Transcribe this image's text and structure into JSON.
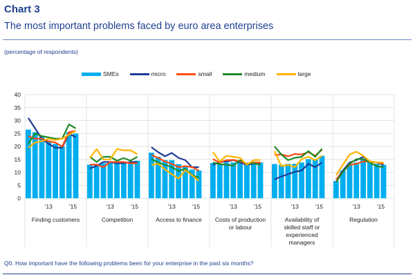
{
  "header": {
    "title": "Chart 3",
    "subtitle": "The most important problems faced by euro area enterprises",
    "unit_note": "(percentage of respondents)"
  },
  "footer": {
    "question": "Q0. How important have the following problems been for your enterprise in the past six months?"
  },
  "chart_data": {
    "type": "bar",
    "title": "The most important problems faced by euro area enterprises",
    "ylabel": "percentage of respondents",
    "ylim": [
      0,
      40
    ],
    "yticks": [
      "0",
      "5",
      "10",
      "15",
      "20",
      "25",
      "30",
      "35",
      "40"
    ],
    "xtick_labels": [
      {
        "index": 3,
        "label": "'13"
      },
      {
        "index": 6.6,
        "label": "'15"
      }
    ],
    "grid": true,
    "legend_position": "top-center",
    "legend": [
      {
        "name": "SMEs",
        "kind": "bar",
        "color": "#00aeef"
      },
      {
        "name": "micro",
        "kind": "line",
        "color": "#1e3c96"
      },
      {
        "name": "small",
        "kind": "line",
        "color": "#ff4b12"
      },
      {
        "name": "medium",
        "kind": "line",
        "color": "#1f8a27"
      },
      {
        "name": "large",
        "kind": "line",
        "color": "#ffb400"
      }
    ],
    "panels": [
      {
        "label": "Finding customers",
        "SMEs": [
          26.5,
          25.5,
          24,
          22,
          21,
          20,
          25.5,
          25
        ],
        "micro": [
          31,
          27,
          23,
          21,
          19.5,
          19.5,
          25,
          23.5
        ],
        "small": [
          24,
          23,
          23,
          22,
          21.5,
          20,
          25.5,
          26
        ],
        "medium": [
          21,
          25,
          24,
          23.5,
          23,
          23,
          28.5,
          27
        ],
        "large": [
          19.5,
          21.5,
          22,
          23,
          22.5,
          23,
          24.5,
          26
        ]
      },
      {
        "label": "Competition",
        "SMEs": [
          13,
          13,
          13.5,
          14,
          13.5,
          14,
          13.5,
          14.5
        ],
        "micro": [
          11.5,
          12.5,
          14,
          14,
          13.5,
          13.5,
          14,
          14
        ],
        "small": [
          13,
          13,
          12,
          14,
          14,
          14,
          13.5,
          13.5
        ],
        "medium": [
          16,
          14,
          16,
          16,
          14.5,
          15.5,
          14.5,
          16
        ],
        "large": [
          15.5,
          19,
          15,
          15,
          19,
          18.5,
          18.5,
          17
        ]
      },
      {
        "label": "Access to finance",
        "SMEs": [
          17.6,
          16,
          14.7,
          14.7,
          13.2,
          12.6,
          11.1,
          10.7
        ],
        "micro": [
          19.7,
          17.8,
          16.2,
          17.5,
          15.6,
          14.7,
          12,
          12
        ],
        "small": [
          16.7,
          15.6,
          14.2,
          13.3,
          12,
          12.4,
          12,
          10.7
        ],
        "medium": [
          15.1,
          13.8,
          12.9,
          12,
          10.5,
          11.4,
          8.9,
          8
        ],
        "large": [
          12.9,
          13.3,
          11.1,
          9.3,
          7.6,
          10.8,
          8.9,
          6.7
        ]
      },
      {
        "label": "Costs of production or labour",
        "SMEs": [
          13.6,
          13.3,
          13.8,
          13.8,
          13.8,
          12.9,
          13.5,
          13.8
        ],
        "micro": [
          12.9,
          14,
          14.2,
          14.7,
          13.8,
          12.9,
          13.3,
          13.5
        ],
        "small": [
          15.1,
          13.8,
          14.7,
          14.8,
          14.2,
          13.3,
          13.8,
          13.8
        ],
        "medium": [
          13.8,
          13.2,
          12.9,
          12.6,
          14.7,
          13.3,
          13.5,
          12.9
        ],
        "large": [
          17.8,
          14.2,
          16.4,
          16,
          15.6,
          12.9,
          14.7,
          14.8
        ]
      },
      {
        "label": "Availability of skilled staff or experienced managers",
        "SMEs": [
          13.2,
          12.9,
          13.3,
          13.3,
          13.8,
          15.1,
          15.1,
          16.4
        ],
        "micro": [
          7.3,
          8.4,
          9.3,
          10.2,
          10.7,
          13.3,
          12,
          13.8
        ],
        "small": [
          16.7,
          16.9,
          16.2,
          17.1,
          16.9,
          17.8,
          16.4,
          18.7
        ],
        "medium": [
          20,
          16.9,
          14.7,
          15.6,
          16,
          18.2,
          16,
          19.1
        ],
        "large": [
          18.2,
          12.4,
          12.9,
          12,
          15.1,
          16,
          14.7,
          16.4
        ]
      },
      {
        "label": "Regulation",
        "SMEs": [
          6.7,
          10.7,
          12.9,
          13.8,
          15.1,
          14.2,
          13.3,
          12.9
        ],
        "micro": [
          7.1,
          10.7,
          13.8,
          14.7,
          16,
          14.2,
          13.8,
          12.9
        ],
        "small": [
          7.1,
          10.2,
          12.9,
          13.3,
          14.2,
          14.2,
          13.8,
          13.3
        ],
        "medium": [
          6.2,
          10.2,
          13.3,
          15.1,
          15.1,
          13.8,
          12.4,
          12
        ],
        "large": [
          8.9,
          12.9,
          16.9,
          18,
          16.4,
          14.2,
          13.8,
          13.8
        ]
      }
    ]
  }
}
